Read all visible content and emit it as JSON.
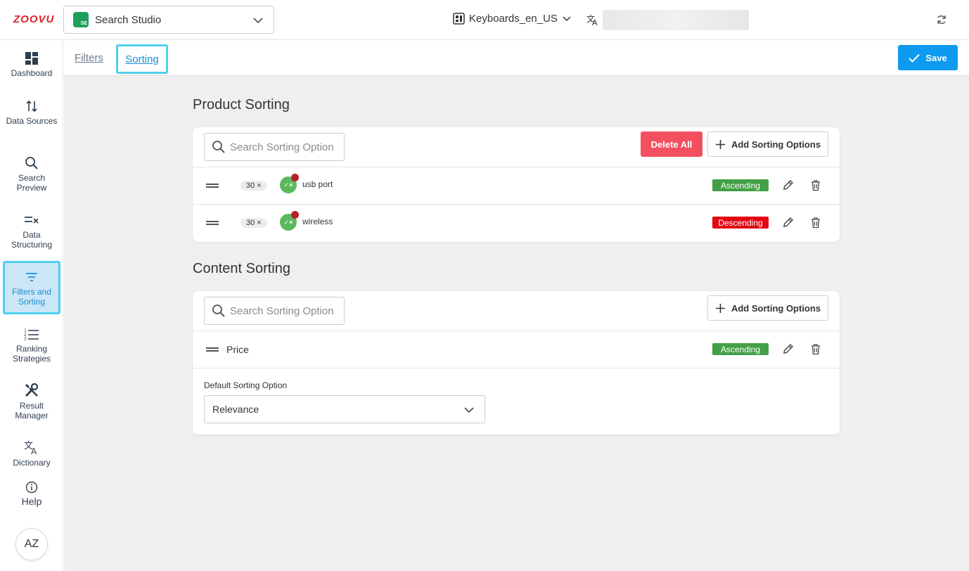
{
  "brand": {
    "logo_text": "ZOOVU",
    "logo_color": "#e0202b",
    "accent": "#0d9aef"
  },
  "header": {
    "app_name": "Search Studio",
    "app_icon_text": "SE",
    "catalog": "Keyboards_en_US"
  },
  "sidebar": {
    "items": [
      {
        "label": "Dashboard",
        "icon": "dashboard-icon"
      },
      {
        "label": "Data Sources",
        "icon": "arrows-updown-icon"
      },
      {
        "label": "Search Preview",
        "icon": "search-icon"
      },
      {
        "label": "Data Structuring",
        "icon": "list-check-icon"
      },
      {
        "label": "Filters and Sorting",
        "icon": "filter-icon",
        "active": true
      },
      {
        "label": "Ranking Strategies",
        "icon": "ordered-list-icon"
      },
      {
        "label": "Result Manager",
        "icon": "tools-icon"
      },
      {
        "label": "Dictionary",
        "icon": "translate-icon"
      }
    ],
    "help": "Help",
    "avatar": "AZ"
  },
  "subnav": {
    "tabs": [
      {
        "label": "Filters"
      },
      {
        "label": "Sorting",
        "active": true
      }
    ],
    "save": "Save"
  },
  "product_sorting": {
    "title": "Product Sorting",
    "search_placeholder": "Search Sorting Option",
    "delete_all": "Delete All",
    "add": "Add Sorting Options",
    "rows": [
      {
        "count": "30 ×",
        "toggle": "✓×",
        "label": "usb port",
        "order": "Ascending"
      },
      {
        "count": "30 ×",
        "toggle": "✓×",
        "label": "wireless",
        "order": "Descending"
      }
    ]
  },
  "content_sorting": {
    "title": "Content Sorting",
    "search_placeholder": "Search Sorting Option",
    "add": "Add Sorting Options",
    "rows": [
      {
        "label": "Price",
        "order": "Ascending"
      }
    ],
    "default_label": "Default Sorting Option",
    "default_value": "Relevance"
  }
}
